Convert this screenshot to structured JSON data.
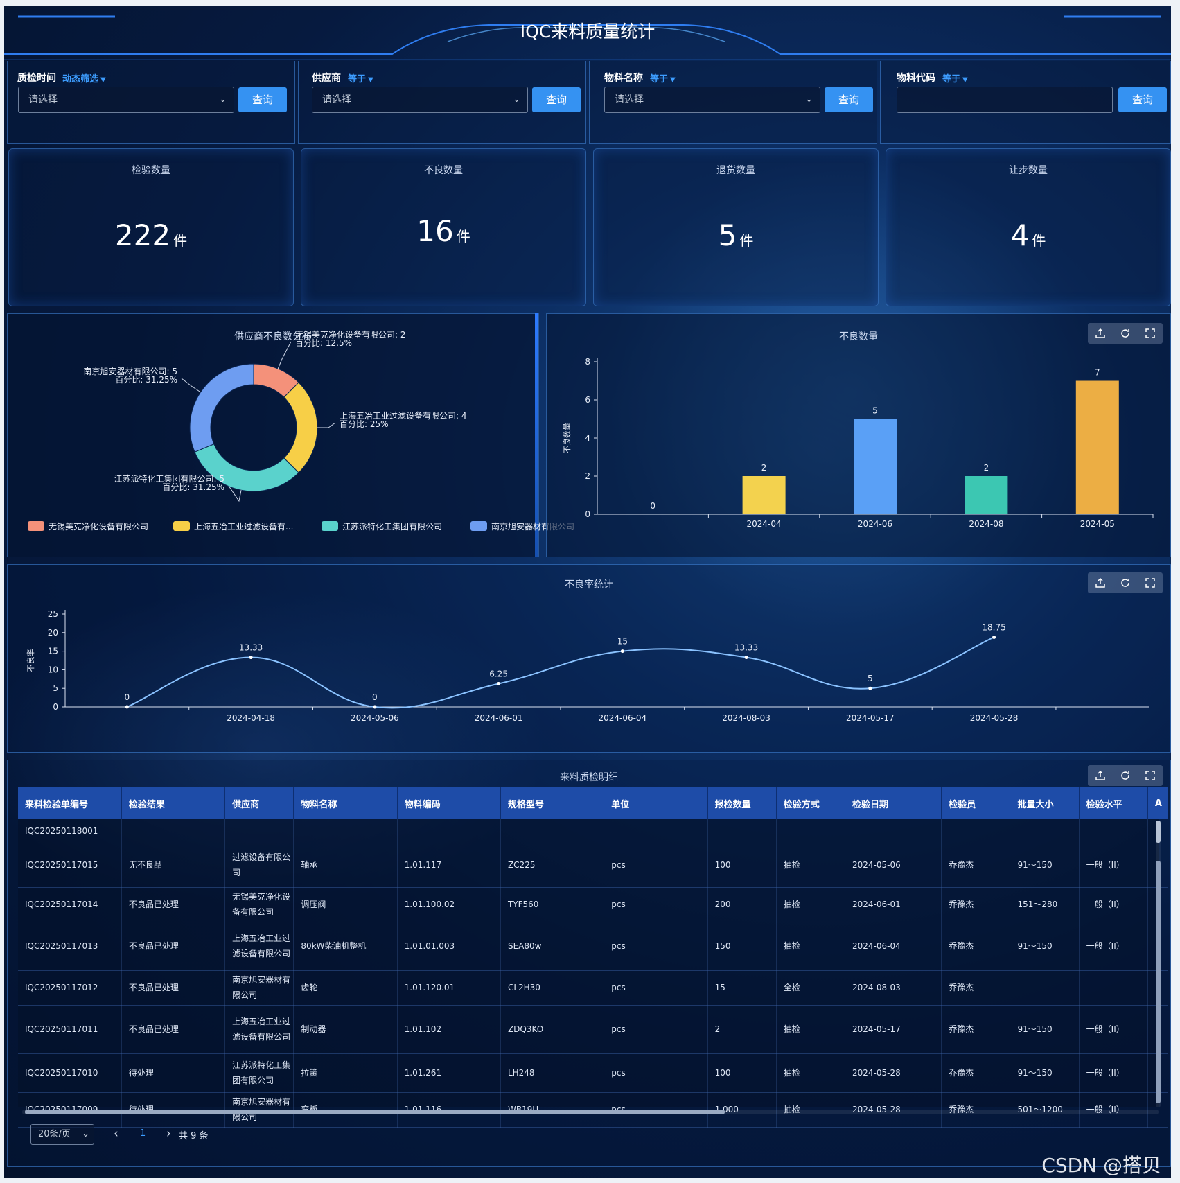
{
  "header": {
    "title": "IQC来料质量统计"
  },
  "filters": [
    {
      "label": "质检时间",
      "mode": "动态筛选",
      "placeholder": "请选择",
      "has_dropdown": true,
      "button": "查询"
    },
    {
      "label": "供应商",
      "mode": "等于",
      "placeholder": "请选择",
      "has_dropdown": true,
      "button": "查询"
    },
    {
      "label": "物料名称",
      "mode": "等于",
      "placeholder": "请选择",
      "has_dropdown": true,
      "button": "查询"
    },
    {
      "label": "物料代码",
      "mode": "等于",
      "placeholder": "",
      "has_dropdown": false,
      "button": "查询"
    }
  ],
  "kpis": [
    {
      "title": "检验数量",
      "value": "222",
      "unit": "件"
    },
    {
      "title": "不良数量",
      "value": "16",
      "unit": "件"
    },
    {
      "title": "退货数量",
      "value": "5",
      "unit": "件"
    },
    {
      "title": "让步数量",
      "value": "4",
      "unit": "件"
    }
  ],
  "chart_data": [
    {
      "type": "pie",
      "title": "供应商不良数分布",
      "donut": true,
      "slices": [
        {
          "name": "无锡美克净化设备有限公司",
          "value": 2,
          "percent": "12.5%",
          "color": "#f4917a"
        },
        {
          "name": "上海五冶工业过滤设备有限公司",
          "value": 4,
          "percent": "25%",
          "color": "#f7cf47"
        },
        {
          "name": "江苏派特化工集团有限公司",
          "value": 5,
          "percent": "31.25%",
          "color": "#5ad2cc"
        },
        {
          "name": "南京旭安器材有限公司",
          "value": 5,
          "percent": "31.25%",
          "color": "#6e9df1"
        }
      ],
      "labels": [
        {
          "line1": "无锡美克净化设备有限公司: 2",
          "line2": "百分比: 12.5%"
        },
        {
          "line1": "上海五冶工业过滤设备有限公司: 4",
          "line2": "百分比: 25%"
        },
        {
          "line1": "江苏派特化工集团有限公司: 5",
          "line2": "百分比: 31.25%"
        },
        {
          "line1": "南京旭安器材有限公司: 5",
          "line2": "百分比: 31.25%"
        }
      ],
      "legend": [
        "无锡美克净化设备有限公司",
        "上海五冶工业过滤设备有...",
        "江苏派特化工集团有限公司",
        "南京旭安器材有限公司"
      ],
      "legend_position": "bottom"
    },
    {
      "type": "bar",
      "title": "不良数量",
      "ylabel": "不良数量",
      "categories": [
        "",
        "2024-04",
        "2024-06",
        "2024-08",
        "2024-05"
      ],
      "values": [
        0,
        2,
        5,
        2,
        7
      ],
      "colors": [
        "#5aa0f6",
        "#f3d24e",
        "#5aa0f6",
        "#3cc7b2",
        "#ecae44"
      ],
      "ylim": [
        0,
        8
      ],
      "yticks": [
        0,
        2,
        4,
        6,
        8
      ]
    },
    {
      "type": "line",
      "title": "不良率统计",
      "ylabel": "不良率",
      "categories": [
        "",
        "2024-04-18",
        "2024-05-06",
        "2024-06-01",
        "2024-06-04",
        "2024-08-03",
        "2024-05-17",
        "2024-05-28"
      ],
      "values": [
        0,
        13.33,
        0,
        6.25,
        15,
        13.33,
        5,
        18.75
      ],
      "value_labels": [
        "0",
        "13.33",
        "0",
        "6.25",
        "15",
        "13.33",
        "5",
        "18.75"
      ],
      "ylim": [
        0,
        25
      ],
      "yticks": [
        0,
        5,
        10,
        15,
        20,
        25
      ],
      "smooth": true,
      "color": "#8ac2ff"
    }
  ],
  "table": {
    "title": "来料质检明细",
    "columns": [
      "来料检验单编号",
      "检验结果",
      "供应商",
      "物料名称",
      "物料编码",
      "规格型号",
      "单位",
      "报检数量",
      "检验方式",
      "检验日期",
      "检验员",
      "批量大小",
      "检验水平",
      "A"
    ],
    "rows": [
      [
        "IQC20250118001",
        "",
        "",
        "",
        "",
        "",
        "",
        "",
        "",
        "",
        "",
        "",
        ""
      ],
      [
        "IQC20250117015",
        "无不良品",
        "过滤设备有限公司",
        "轴承",
        "1.01.117",
        "ZC225",
        "pcs",
        "100",
        "抽检",
        "2024-05-06",
        "乔豫杰",
        "91～150",
        "一般（II）"
      ],
      [
        "IQC20250117014",
        "不良品已处理",
        "无锡美克净化设备有限公司",
        "调压阀",
        "1.01.100.02",
        "TYF560",
        "pcs",
        "200",
        "抽检",
        "2024-06-01",
        "乔豫杰",
        "151～280",
        "一般（II）"
      ],
      [
        "IQC20250117013",
        "不良品已处理",
        "上海五冶工业过滤设备有限公司",
        "80kW柴油机整机",
        "1.01.01.003",
        "SEA80w",
        "pcs",
        "150",
        "抽检",
        "2024-06-04",
        "乔豫杰",
        "91～150",
        "一般（II）"
      ],
      [
        "IQC20250117012",
        "不良品已处理",
        "南京旭安器材有限公司",
        "齿轮",
        "1.01.120.01",
        "CL2H30",
        "pcs",
        "15",
        "全检",
        "2024-08-03",
        "乔豫杰",
        "",
        ""
      ],
      [
        "IQC20250117011",
        "不良品已处理",
        "上海五冶工业过滤设备有限公司",
        "制动器",
        "1.01.102",
        "ZDQ3KO",
        "pcs",
        "2",
        "抽检",
        "2024-05-17",
        "乔豫杰",
        "91～150",
        "一般（II）"
      ],
      [
        "IQC20250117010",
        "待处理",
        "江苏派特化工集团有限公司",
        "拉簧",
        "1.01.261",
        "LH248",
        "pcs",
        "100",
        "抽检",
        "2024-05-28",
        "乔豫杰",
        "91～150",
        "一般（II）"
      ],
      [
        "IQC20250117009",
        "待处理",
        "南京旭安器材有限公司",
        "弯板",
        "1.01.116",
        "WB19U",
        "pcs",
        "1,000",
        "抽检",
        "2024-05-28",
        "乔豫杰",
        "501～1200",
        "一般（II）"
      ]
    ]
  },
  "pagination": {
    "page_size": "20条/页",
    "prev": "‹",
    "current": "1",
    "next": "›",
    "total": "共 9 条"
  },
  "toolbar": {
    "icons": [
      "export-icon",
      "refresh-icon",
      "fullscreen-icon"
    ]
  },
  "watermark": "CSDN @搭贝",
  "colors": {
    "accent": "#3592f2",
    "header_bg": "#1e4ca8"
  }
}
